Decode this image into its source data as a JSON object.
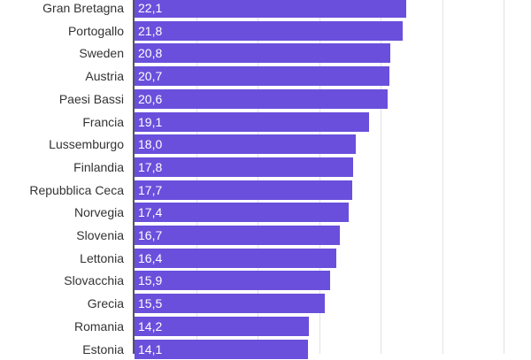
{
  "chart_data": {
    "type": "bar",
    "orientation": "horizontal",
    "title": "",
    "xlabel": "",
    "ylabel": "",
    "xlim": [
      0,
      30
    ],
    "gridlines_x": [
      5,
      10,
      15,
      20,
      25,
      30
    ],
    "grid": true,
    "legend": null,
    "bar_color": "#6a4fdc",
    "value_format": "decimal comma",
    "categories": [
      "Gran Bretagna",
      "Portogallo",
      "Sweden",
      "Austria",
      "Paesi Bassi",
      "Francia",
      "Lussemburgo",
      "Finlandia",
      "Repubblica Ceca",
      "Norvegia",
      "Slovenia",
      "Lettonia",
      "Slovacchia",
      "Grecia",
      "Romania",
      "Estonia"
    ],
    "values": [
      22.1,
      21.8,
      20.8,
      20.7,
      20.6,
      19.1,
      18.0,
      17.8,
      17.7,
      17.4,
      16.7,
      16.4,
      15.9,
      15.5,
      14.2,
      14.1
    ],
    "value_labels": [
      "22,1",
      "21,8",
      "20,8",
      "20,7",
      "20,6",
      "19,1",
      "18,0",
      "17,8",
      "17,7",
      "17,4",
      "16,7",
      "16,4",
      "15,9",
      "15,5",
      "14,2",
      "14,1"
    ]
  }
}
